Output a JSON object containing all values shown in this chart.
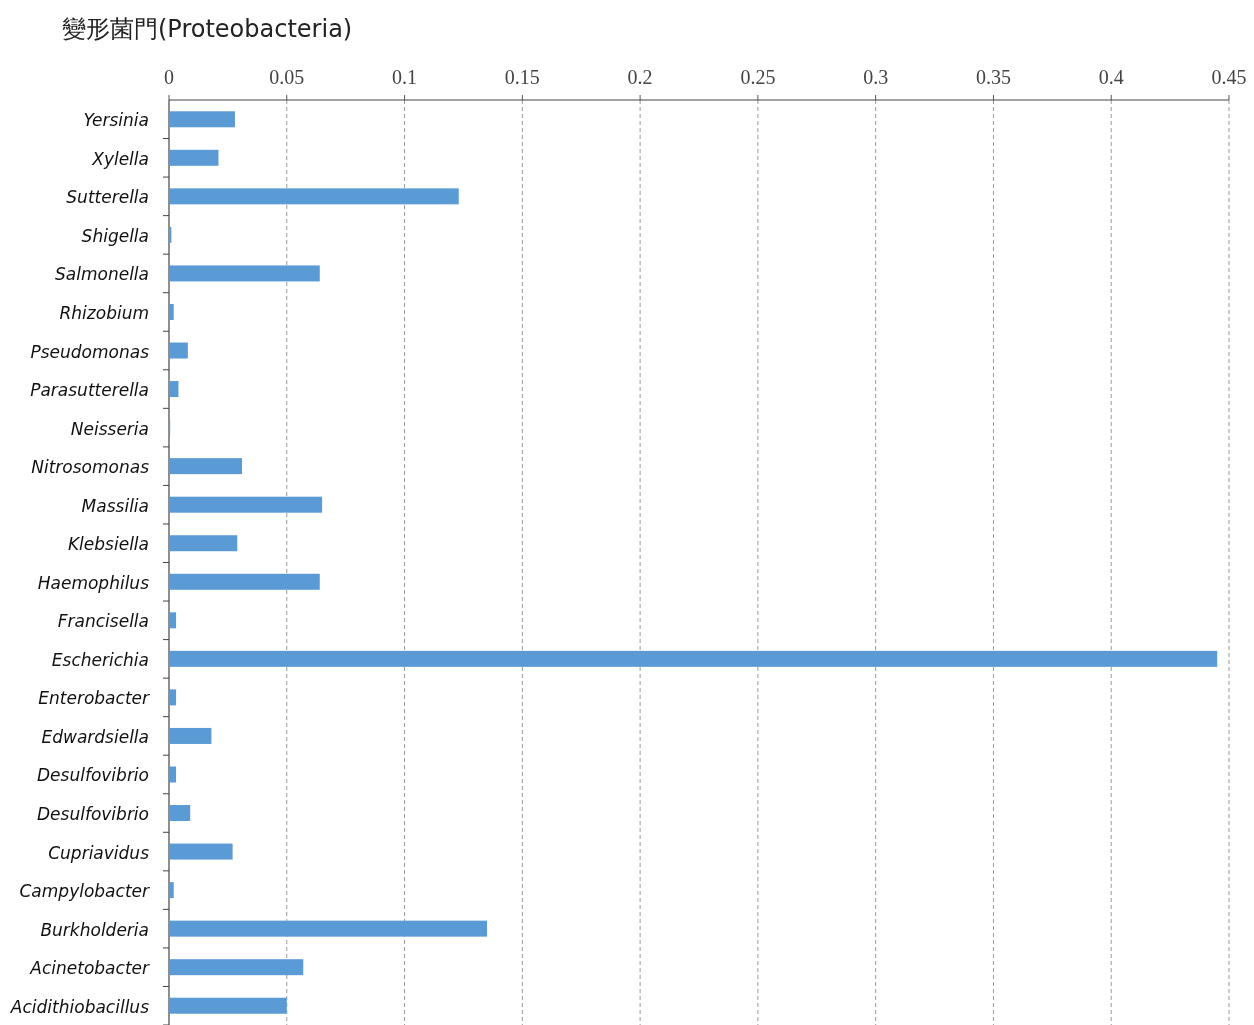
{
  "chart_data": {
    "type": "bar",
    "orientation": "horizontal",
    "title": "變形菌門(Proteobacteria)",
    "categories": [
      "Yersinia",
      "Xylella",
      "Sutterella",
      "Shigella",
      "Salmonella",
      "Rhizobium",
      "Pseudomonas",
      "Parasutterella",
      "Neisseria",
      "Nitrosomonas",
      "Massilia",
      "Klebsiella",
      "Haemophilus",
      "Francisella",
      "Escherichia",
      "Enterobacter",
      "Edwardsiella",
      "Desulfovibrio",
      "Desulfovibrio",
      "Cupriavidus",
      "Campylobacter",
      "Burkholderia",
      "Acinetobacter",
      "Acidithiobacillus"
    ],
    "values": [
      0.028,
      0.021,
      0.123,
      0.001,
      0.064,
      0.002,
      0.008,
      0.004,
      0.0005,
      0.031,
      0.065,
      0.029,
      0.064,
      0.003,
      0.445,
      0.003,
      0.018,
      0.003,
      0.009,
      0.027,
      0.002,
      0.135,
      0.057,
      0.05
    ],
    "color": "#5b9bd5",
    "xlim": [
      0,
      0.45
    ],
    "xticks": [
      0,
      0.05,
      0.1,
      0.15,
      0.2,
      0.25,
      0.3,
      0.35,
      0.4,
      0.45
    ],
    "grid": "x"
  }
}
